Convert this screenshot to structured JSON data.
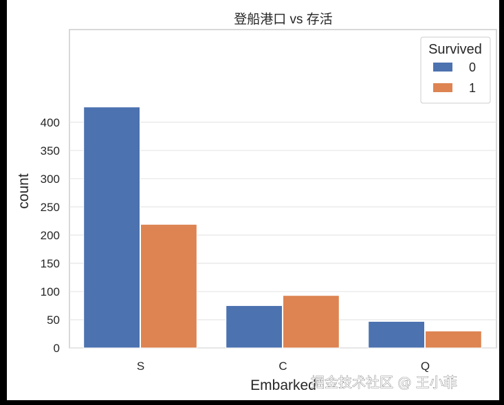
{
  "chart_data": {
    "type": "bar",
    "title": "登船港口 vs 存活",
    "xlabel": "Embarked",
    "ylabel": "count",
    "categories": [
      "S",
      "C",
      "Q"
    ],
    "series": [
      {
        "name": "0",
        "values": [
          427,
          75,
          47
        ]
      },
      {
        "name": "1",
        "values": [
          219,
          93,
          30
        ]
      }
    ],
    "ylim": [
      0,
      450
    ],
    "yticks": [
      0,
      50,
      100,
      150,
      200,
      250,
      300,
      350,
      400
    ],
    "legend_title": "Survived",
    "legend_position": "top-right",
    "grid": true,
    "colors": [
      "#4c72b0",
      "#dd8452"
    ]
  },
  "watermark": "掘金技术社区 @ 王小菲"
}
